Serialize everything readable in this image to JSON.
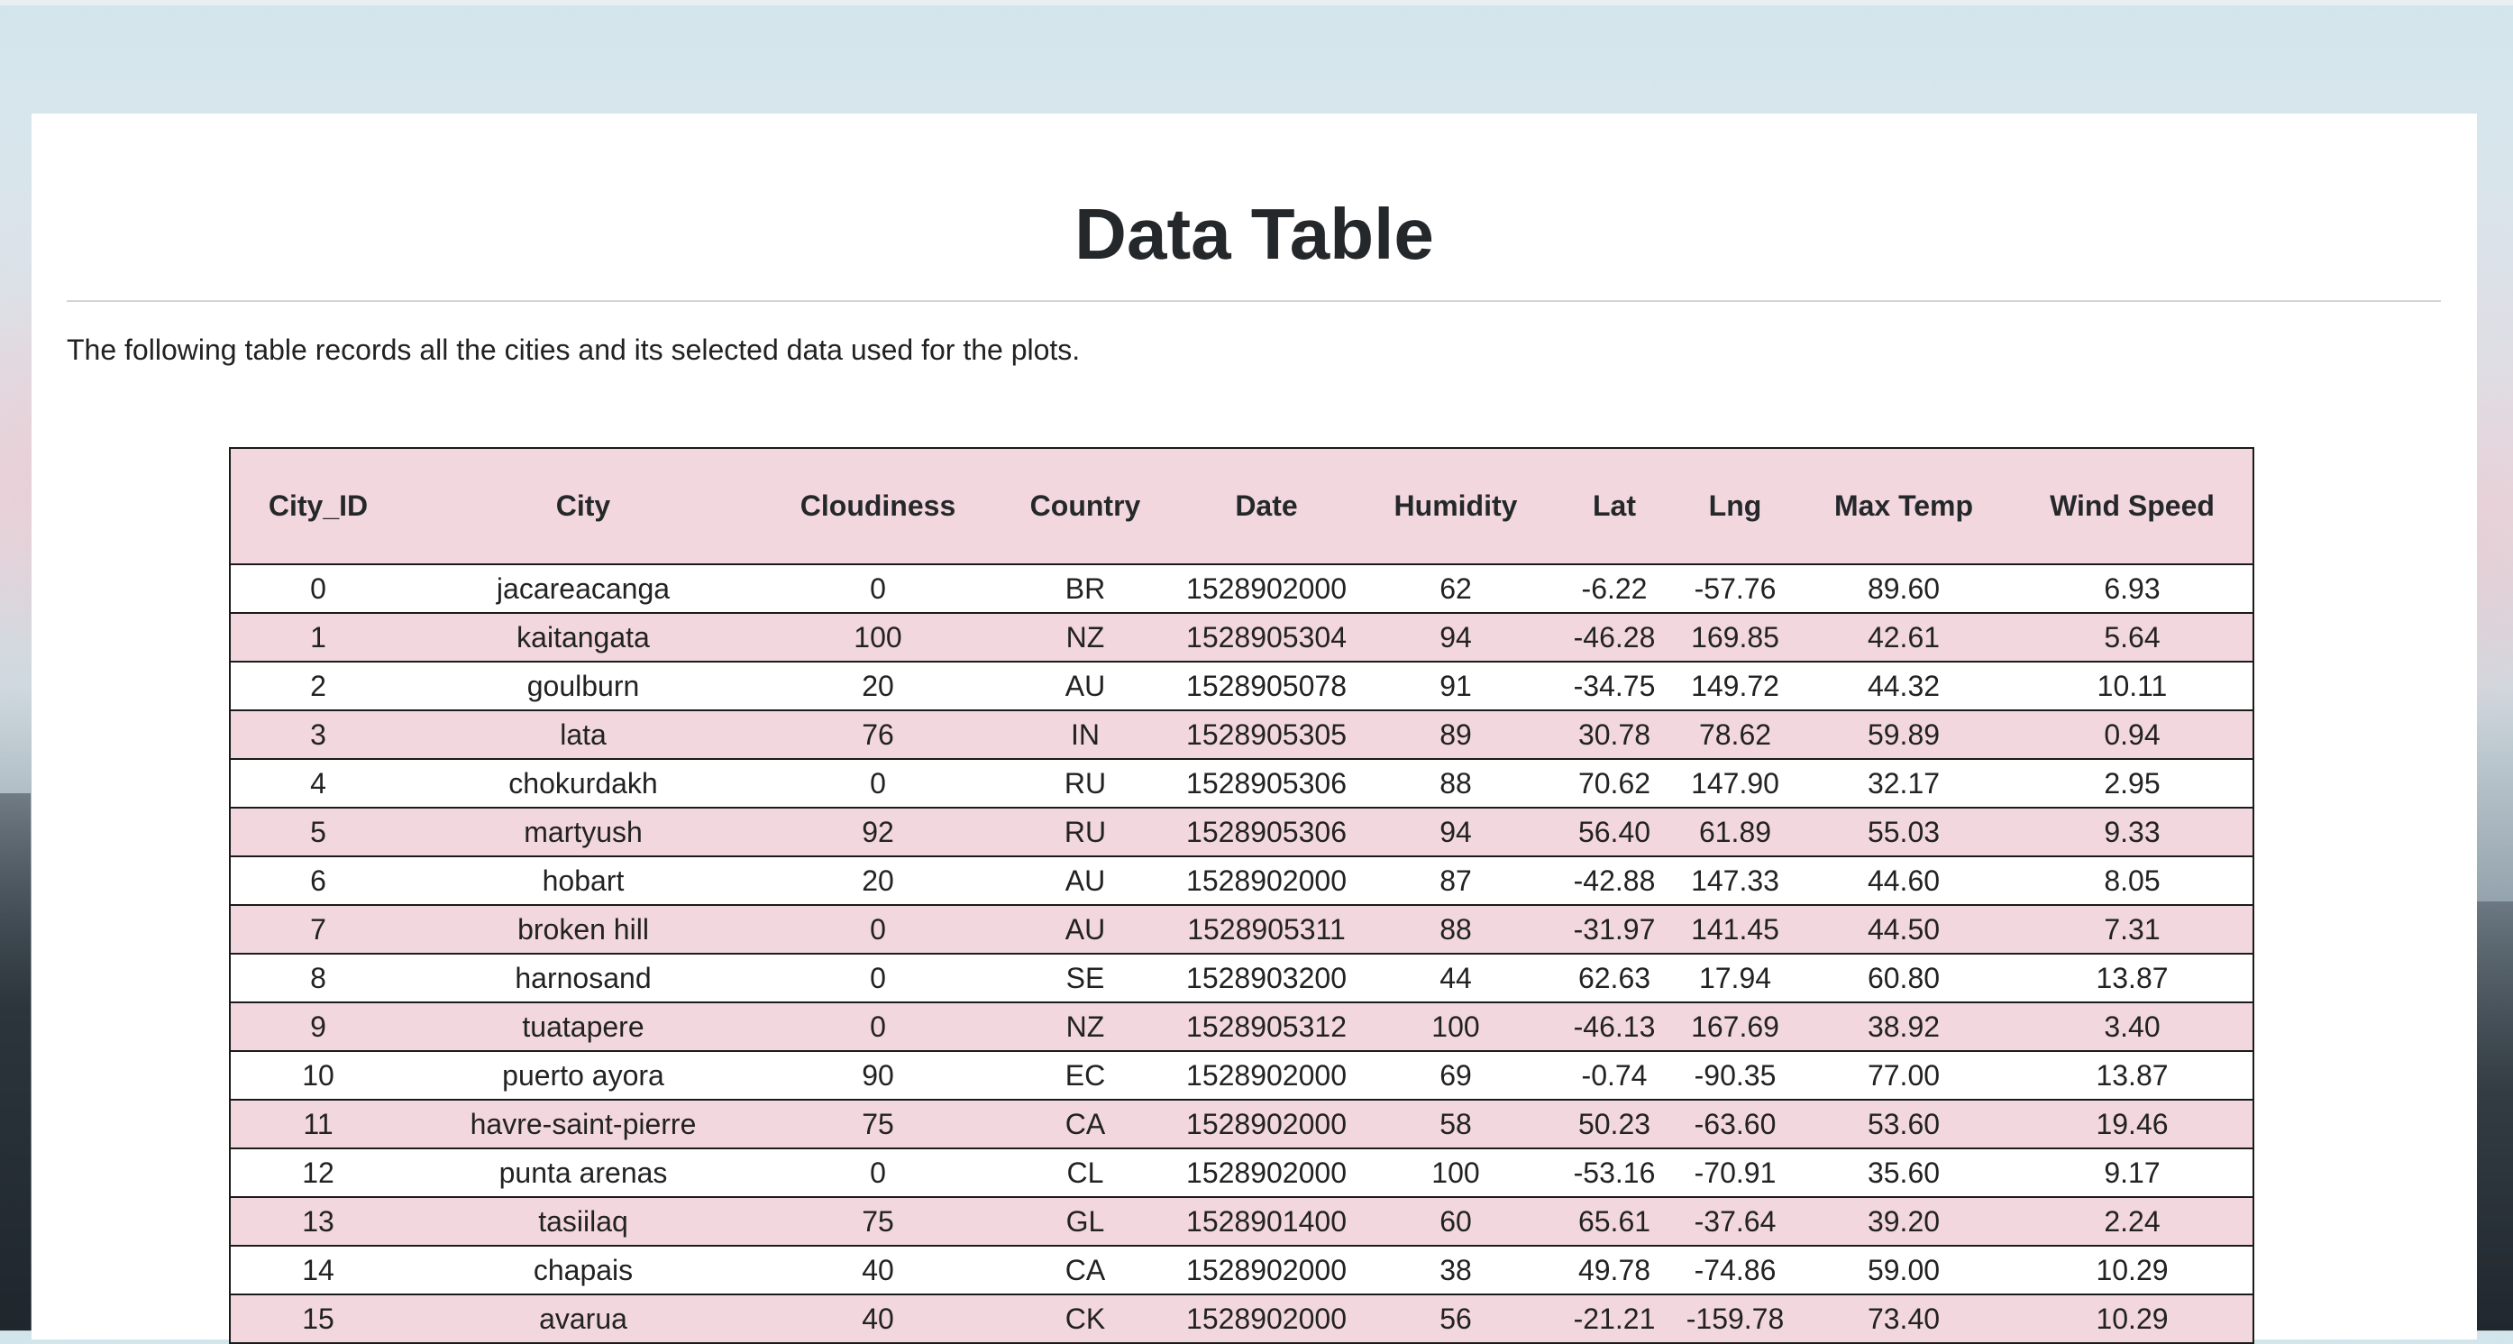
{
  "page": {
    "title": "Data Table",
    "intro": "The following table records all the cities and its selected data used for the plots."
  },
  "colors": {
    "row_stripe": "#f2d8de",
    "header_bg": "#f2d8de",
    "border": "#1b1b1b",
    "panel_bg": "#ffffff"
  },
  "table": {
    "headers": [
      "City_ID",
      "City",
      "Cloudiness",
      "Country",
      "Date",
      "Humidity",
      "Lat",
      "Lng",
      "Max Temp",
      "Wind Speed"
    ],
    "rows": [
      [
        "0",
        "jacareacanga",
        "0",
        "BR",
        "1528902000",
        "62",
        "-6.22",
        "-57.76",
        "89.60",
        "6.93"
      ],
      [
        "1",
        "kaitangata",
        "100",
        "NZ",
        "1528905304",
        "94",
        "-46.28",
        "169.85",
        "42.61",
        "5.64"
      ],
      [
        "2",
        "goulburn",
        "20",
        "AU",
        "1528905078",
        "91",
        "-34.75",
        "149.72",
        "44.32",
        "10.11"
      ],
      [
        "3",
        "lata",
        "76",
        "IN",
        "1528905305",
        "89",
        "30.78",
        "78.62",
        "59.89",
        "0.94"
      ],
      [
        "4",
        "chokurdakh",
        "0",
        "RU",
        "1528905306",
        "88",
        "70.62",
        "147.90",
        "32.17",
        "2.95"
      ],
      [
        "5",
        "martyush",
        "92",
        "RU",
        "1528905306",
        "94",
        "56.40",
        "61.89",
        "55.03",
        "9.33"
      ],
      [
        "6",
        "hobart",
        "20",
        "AU",
        "1528902000",
        "87",
        "-42.88",
        "147.33",
        "44.60",
        "8.05"
      ],
      [
        "7",
        "broken hill",
        "0",
        "AU",
        "1528905311",
        "88",
        "-31.97",
        "141.45",
        "44.50",
        "7.31"
      ],
      [
        "8",
        "harnosand",
        "0",
        "SE",
        "1528903200",
        "44",
        "62.63",
        "17.94",
        "60.80",
        "13.87"
      ],
      [
        "9",
        "tuatapere",
        "0",
        "NZ",
        "1528905312",
        "100",
        "-46.13",
        "167.69",
        "38.92",
        "3.40"
      ],
      [
        "10",
        "puerto ayora",
        "90",
        "EC",
        "1528902000",
        "69",
        "-0.74",
        "-90.35",
        "77.00",
        "13.87"
      ],
      [
        "11",
        "havre-saint-pierre",
        "75",
        "CA",
        "1528902000",
        "58",
        "50.23",
        "-63.60",
        "53.60",
        "19.46"
      ],
      [
        "12",
        "punta arenas",
        "0",
        "CL",
        "1528902000",
        "100",
        "-53.16",
        "-70.91",
        "35.60",
        "9.17"
      ],
      [
        "13",
        "tasiilaq",
        "75",
        "GL",
        "1528901400",
        "60",
        "65.61",
        "-37.64",
        "39.20",
        "2.24"
      ],
      [
        "14",
        "chapais",
        "40",
        "CA",
        "1528902000",
        "38",
        "49.78",
        "-74.86",
        "59.00",
        "10.29"
      ],
      [
        "15",
        "avarua",
        "40",
        "CK",
        "1528902000",
        "56",
        "-21.21",
        "-159.78",
        "73.40",
        "10.29"
      ]
    ]
  }
}
